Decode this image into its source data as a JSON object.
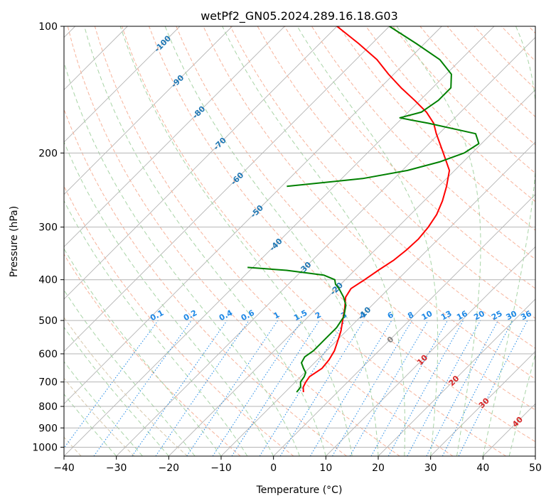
{
  "chart_data": {
    "type": "line",
    "subtype": "skew-T log-P diagram",
    "title": "wetPf2_GN05.2024.289.16.18.G03",
    "xlabel": "Temperature (°C)",
    "ylabel": "Pressure (hPa)",
    "xlim": [
      -40,
      50
    ],
    "ylim": [
      1050,
      100
    ],
    "yscale": "log",
    "x_ticks": [
      -40,
      -30,
      -20,
      -10,
      0,
      10,
      20,
      30,
      40,
      50
    ],
    "x_tick_labels": [
      "−40",
      "−30",
      "−20",
      "−10",
      "0",
      "10",
      "20",
      "30",
      "40",
      "50"
    ],
    "y_ticks": [
      1000,
      900,
      800,
      700,
      600,
      500,
      400,
      300,
      200,
      100
    ],
    "y_tick_labels": [
      "1000",
      "900",
      "800",
      "700",
      "600",
      "500",
      "400",
      "300",
      "200",
      "100"
    ],
    "grid": true,
    "series": [
      {
        "role": "temperature",
        "color": "#ff0000",
        "points": [
          [
            740,
            -6.5
          ],
          [
            720,
            -7.5
          ],
          [
            700,
            -8.0
          ],
          [
            680,
            -8.3
          ],
          [
            650,
            -7.5
          ],
          [
            620,
            -7.8
          ],
          [
            590,
            -8.5
          ],
          [
            560,
            -9.7
          ],
          [
            530,
            -11.0
          ],
          [
            500,
            -12.7
          ],
          [
            470,
            -14.5
          ],
          [
            440,
            -16.6
          ],
          [
            420,
            -17.2
          ],
          [
            400,
            -16.3
          ],
          [
            380,
            -15.5
          ],
          [
            360,
            -14.5
          ],
          [
            340,
            -14.0
          ],
          [
            320,
            -13.8
          ],
          [
            300,
            -14.2
          ],
          [
            280,
            -15.0
          ],
          [
            260,
            -16.5
          ],
          [
            240,
            -18.5
          ],
          [
            220,
            -21.0
          ],
          [
            200,
            -25.5
          ],
          [
            180,
            -30.5
          ],
          [
            170,
            -33.0
          ],
          [
            160,
            -36.5
          ],
          [
            150,
            -41.0
          ],
          [
            140,
            -46.0
          ],
          [
            130,
            -51.0
          ],
          [
            120,
            -56.0
          ],
          [
            110,
            -62.5
          ],
          [
            100,
            -70.0
          ]
        ]
      },
      {
        "role": "dewpoint",
        "color": "#008000",
        "points": [
          [
            740,
            -7.8
          ],
          [
            720,
            -8.0
          ],
          [
            700,
            -9.0
          ],
          [
            680,
            -9.3
          ],
          [
            665,
            -9.8
          ],
          [
            650,
            -11.0
          ],
          [
            630,
            -12.5
          ],
          [
            610,
            -13.0
          ],
          [
            590,
            -12.5
          ],
          [
            570,
            -12.5
          ],
          [
            550,
            -12.5
          ],
          [
            520,
            -12.5
          ],
          [
            490,
            -13.2
          ],
          [
            460,
            -15.0
          ],
          [
            440,
            -17.0
          ],
          [
            420,
            -19.5
          ],
          [
            410,
            -21.0
          ],
          [
            400,
            -22.0
          ],
          [
            390,
            -25.0
          ],
          [
            380,
            -33.0
          ],
          [
            374,
            -41.0
          ]
        ]
      },
      {
        "role": "dewpoint-upper",
        "color": "#008000",
        "points": [
          [
            240,
            -49.0
          ],
          [
            230,
            -36.0
          ],
          [
            220,
            -29.0
          ],
          [
            210,
            -24.5
          ],
          [
            200,
            -21.5
          ],
          [
            190,
            -20.5
          ],
          [
            180,
            -23.0
          ],
          [
            170,
            -34.0
          ],
          [
            167,
            -38.0
          ],
          [
            165,
            -40.5
          ],
          [
            160,
            -37.5
          ],
          [
            150,
            -36.5
          ],
          [
            140,
            -36.5
          ],
          [
            130,
            -39.0
          ],
          [
            120,
            -44.0
          ],
          [
            110,
            -51.5
          ],
          [
            100,
            -60.0
          ]
        ]
      }
    ],
    "background": {
      "skew": "isotherms at 45 degrees",
      "dry_adiabats_label_C": [
        -100,
        -90,
        -80,
        -70,
        -60,
        -50,
        -40,
        -30,
        -20,
        -10
      ],
      "moist_adiabats_label_C": [
        0,
        10,
        20,
        30,
        40
      ],
      "mixing_ratio_labels_g_per_kg": [
        "0.1",
        "0.2",
        "0.4",
        "0.6",
        "1",
        "1.5",
        "2",
        "3",
        "4",
        "6",
        "8",
        "10",
        "13",
        "16",
        "20",
        "25",
        "30",
        "36"
      ]
    }
  }
}
